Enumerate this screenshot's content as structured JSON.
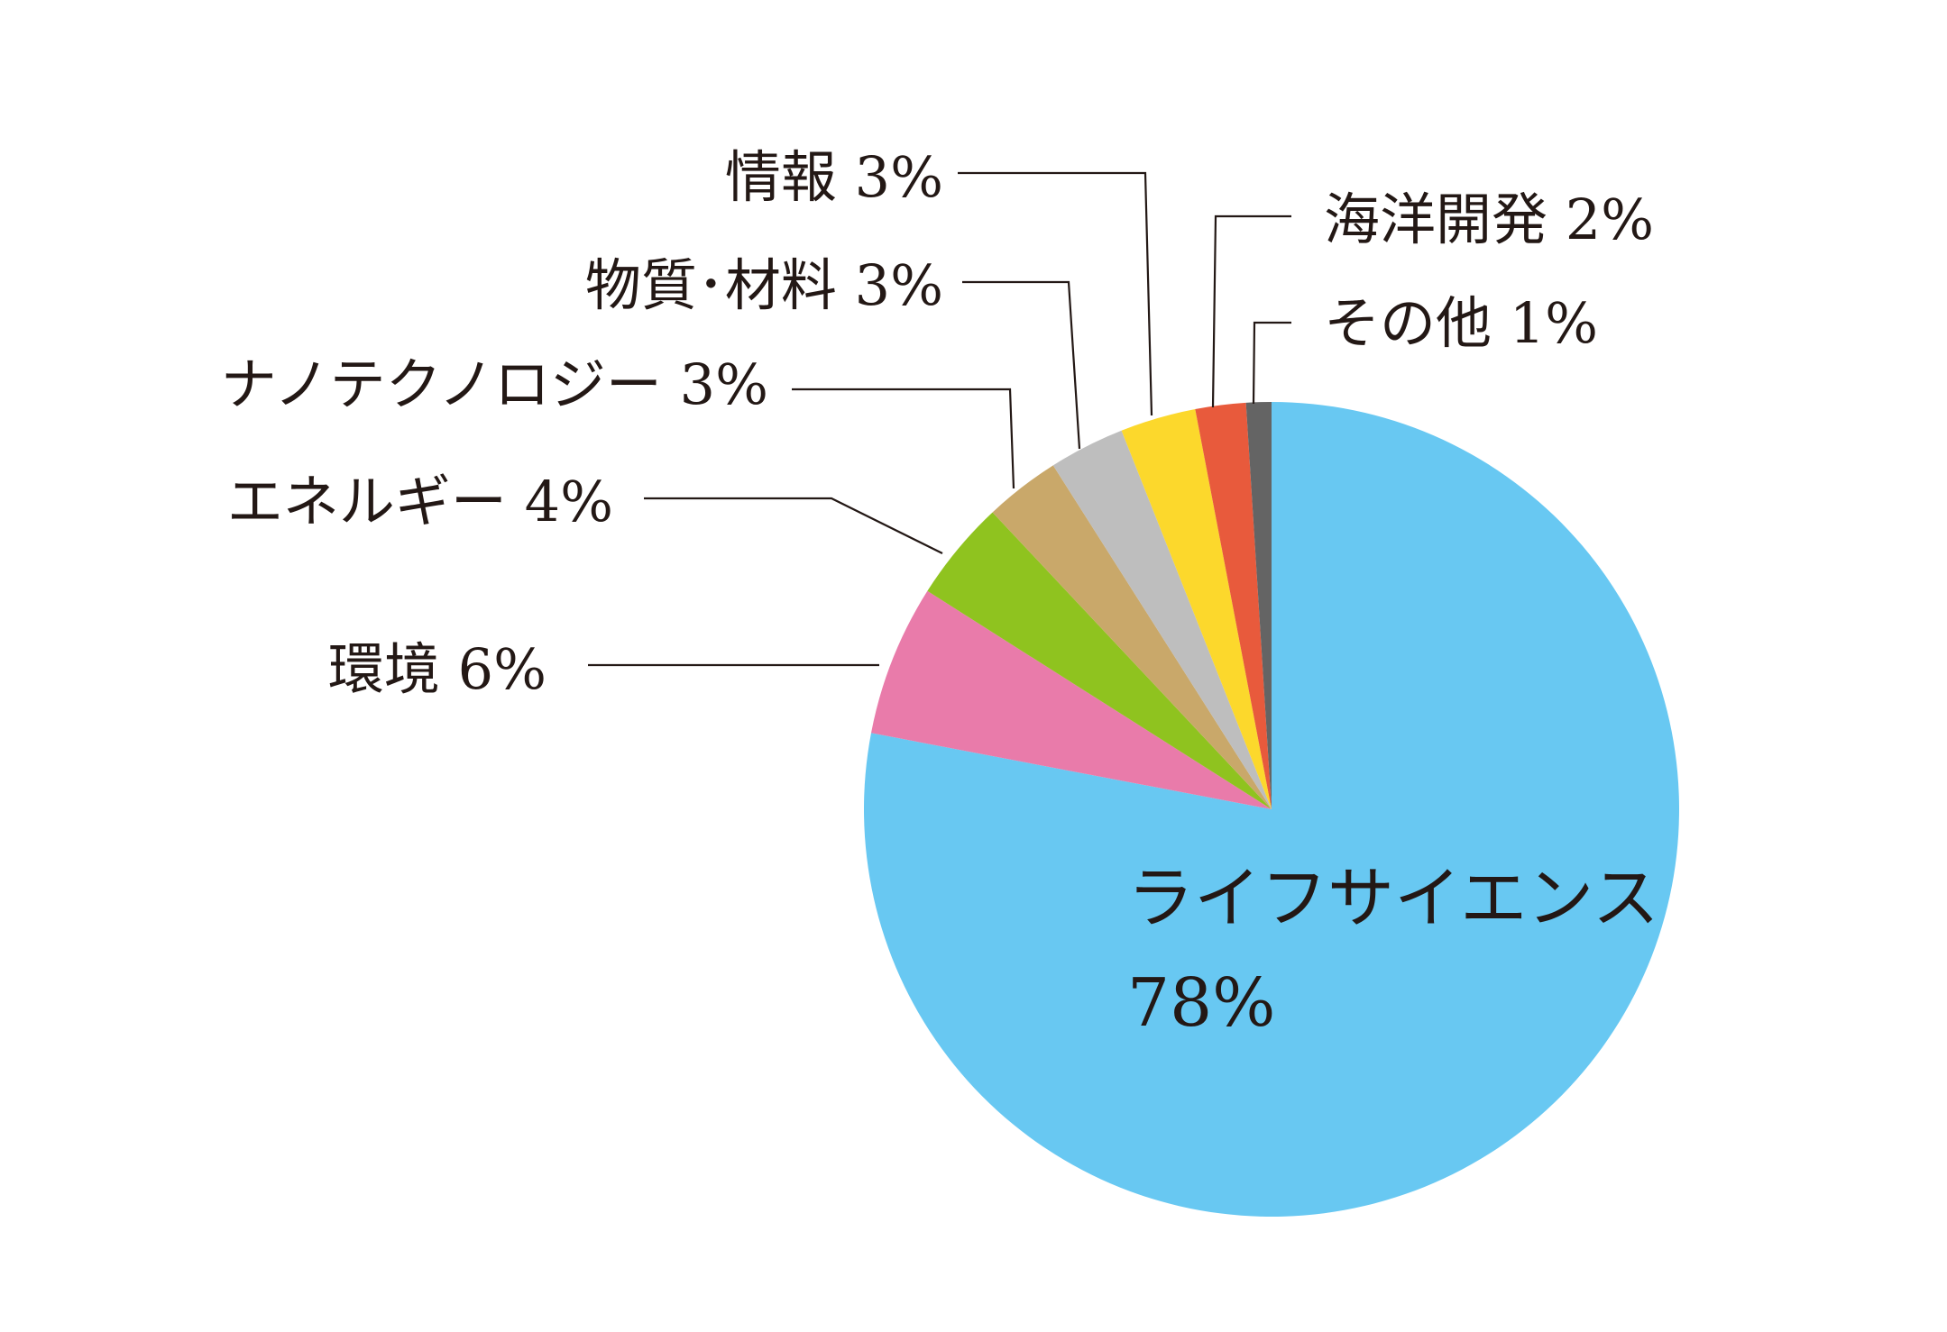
{
  "chart_data": {
    "type": "pie",
    "title": "",
    "start": "12 o'clock",
    "direction": "clockwise",
    "slices": [
      {
        "label": "ライフサイエンス",
        "value": 78,
        "value_text": "78%",
        "color": "#68C8F2"
      },
      {
        "label": "環境",
        "value": 6,
        "value_text": "6%",
        "color": "#E97BAA"
      },
      {
        "label": "エネルギー",
        "value": 4,
        "value_text": "4%",
        "color": "#8FC31F"
      },
      {
        "label": "ナノテクノロジー",
        "value": 3,
        "value_text": "3%",
        "color": "#C9A86A"
      },
      {
        "label": "物質･材料",
        "value": 3,
        "value_text": "3%",
        "color": "#BEBEBE"
      },
      {
        "label": "情報",
        "value": 3,
        "value_text": "3%",
        "color": "#FCD82C"
      },
      {
        "label": "海洋開発",
        "value": 2,
        "value_text": "2%",
        "color": "#E85A3C"
      },
      {
        "label": "その他",
        "value": 1,
        "value_text": "1%",
        "color": "#646464"
      }
    ]
  }
}
